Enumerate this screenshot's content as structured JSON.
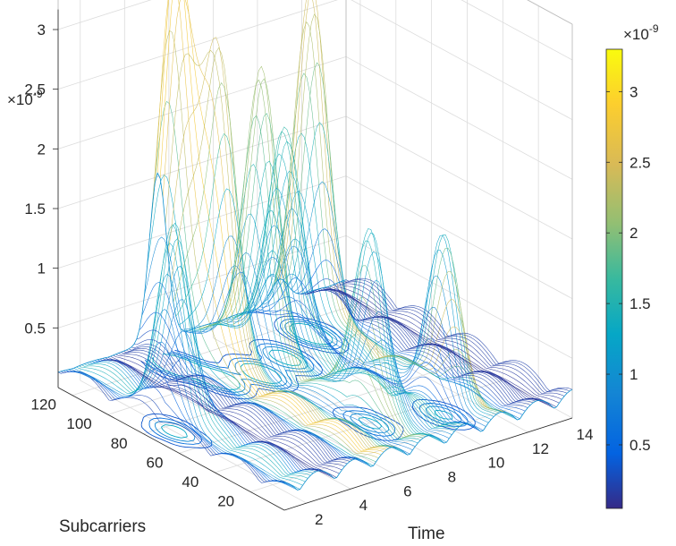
{
  "chart_data": {
    "type": "surface",
    "title": "",
    "xlabel": "Time",
    "ylabel": "Subcarriers",
    "zlabel": "",
    "x_ticks": [
      "2",
      "4",
      "6",
      "8",
      "10",
      "12",
      "14"
    ],
    "y_ticks": [
      "20",
      "40",
      "60",
      "80",
      "100",
      "120"
    ],
    "z_ticks": [
      "0.5",
      "1",
      "1.5",
      "2",
      "2.5",
      "3"
    ],
    "z_exponent_base": "×10",
    "z_exponent_power": "-9",
    "xlim": [
      1,
      14
    ],
    "ylim": [
      1,
      128
    ],
    "zlim": [
      0,
      3.3
    ],
    "colormap": "parula",
    "contour_projection": true,
    "grid": true,
    "colorbar": {
      "ticks": [
        "0.5",
        "1",
        "1.5",
        "2",
        "2.5",
        "3"
      ],
      "exponent_base": "×10",
      "exponent_power": "-9",
      "range": [
        0.05,
        3.3
      ],
      "placement": "right"
    },
    "peaks": [
      {
        "time": 5.5,
        "subcarrier": 118,
        "value": 3.2
      },
      {
        "time": 6.0,
        "subcarrier": 100,
        "value": 2.6
      },
      {
        "time": 7.5,
        "subcarrier": 95,
        "value": 2.4
      },
      {
        "time": 9.0,
        "subcarrier": 100,
        "value": 1.8
      },
      {
        "time": 11.0,
        "subcarrier": 110,
        "value": 2.7
      },
      {
        "time": 2.0,
        "subcarrier": 75,
        "value": 1.6
      },
      {
        "time": 8.0,
        "subcarrier": 40,
        "value": 1.5
      },
      {
        "time": 10.5,
        "subcarrier": 30,
        "value": 1.3
      }
    ]
  }
}
